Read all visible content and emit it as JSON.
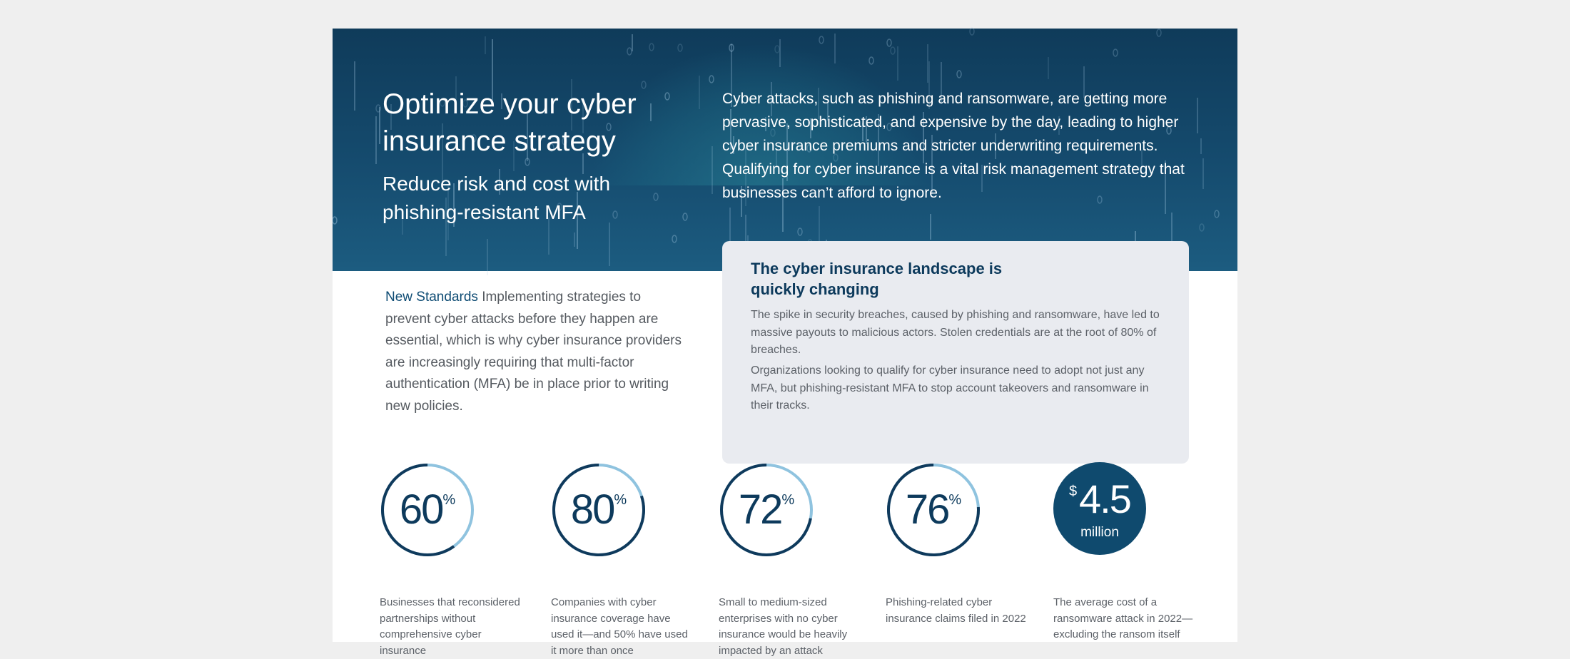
{
  "hero": {
    "title": "Optimize your cyber insurance strategy",
    "subtitle": "Reduce risk and cost with phishing-resistant MFA",
    "intro": "Cyber attacks, such as phishing and ransomware, are getting more pervasive, sophisticated, and expensive by the day, leading to higher cyber insurance premiums and stricter underwriting requirements. Qualifying for cyber insurance is a vital risk management strategy that businesses can’t afford to ignore."
  },
  "standards": {
    "lead": "New Standards",
    "body": "Implementing strategies to prevent cyber attacks before they happen are essential, which is why cyber insurance providers are increasingly requiring that multi-factor authentication (MFA) be in place prior to writing new policies."
  },
  "card": {
    "title": "The cyber insurance landscape is quickly changing",
    "paragraph1": "The spike in security breaches, caused by phishing and ransomware, have led to massive payouts to malicious actors. Stolen credentials are at the root of 80% of breaches.",
    "paragraph2": "Organizations looking to qualify for cyber insurance need to adopt not just any MFA, but phishing-resistant MFA to stop account takeovers and ransomware in their tracks."
  },
  "stats": [
    {
      "value": "60",
      "unit": "%",
      "fraction": 0.6,
      "description": "Businesses that reconsidered partnerships without comprehensive cyber insurance"
    },
    {
      "value": "80",
      "unit": "%",
      "fraction": 0.8,
      "description": "Companies with cyber insurance coverage have used it—and 50% have used it more than once"
    },
    {
      "value": "72",
      "unit": "%",
      "fraction": 0.72,
      "description": "Small to medium-sized enterprises with no cyber insurance would be heavily impacted by an attack"
    },
    {
      "value": "76",
      "unit": "%",
      "fraction": 0.76,
      "description": "Phishing-related cyber insurance claims filed in 2022"
    }
  ],
  "cost_stat": {
    "currency": "$",
    "value": "4.5",
    "unit": "million",
    "description": "The average cost of a ransomware attack in 2022—excluding the ransom itself"
  },
  "colors": {
    "hero_bg": "#154b6e",
    "ring_dark": "#0f3a5c",
    "ring_light": "#8fc3df",
    "accent_text": "#0d4b73",
    "card_bg": "#e9ebf0"
  }
}
